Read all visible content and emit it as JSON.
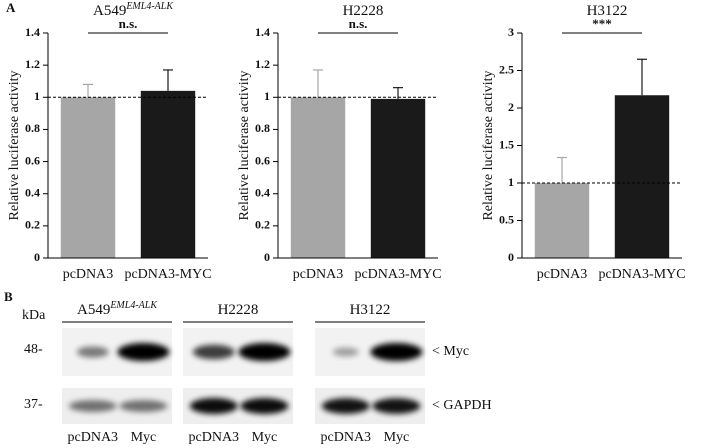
{
  "panel_a_label": "A",
  "chart_data": [
    {
      "type": "bar",
      "title": "A549",
      "title_superscript": "EML4-ALK",
      "y_label": "Relative luciferase activity",
      "categories": [
        "pcDNA3",
        "pcDNA3-MYC"
      ],
      "values": [
        1.0,
        1.04
      ],
      "errors": [
        0.08,
        0.13
      ],
      "colors": [
        "#a6a6a6",
        "#1a1a1a"
      ],
      "ylim": [
        0,
        1.4
      ],
      "yticks": [
        0,
        0.2,
        0.4,
        0.6,
        0.8,
        1,
        1.2,
        1.4
      ],
      "reference_line": 1,
      "annotation": "n.s."
    },
    {
      "type": "bar",
      "title": "H2228",
      "y_label": "Relative luciferase activity",
      "categories": [
        "pcDNA3",
        "pcDNA3-MYC"
      ],
      "values": [
        1.0,
        0.99
      ],
      "errors": [
        0.17,
        0.07
      ],
      "colors": [
        "#a6a6a6",
        "#1a1a1a"
      ],
      "ylim": [
        0,
        1.4
      ],
      "yticks": [
        0,
        0.2,
        0.4,
        0.6,
        0.8,
        1,
        1.2,
        1.4
      ],
      "reference_line": 1,
      "annotation": "n.s."
    },
    {
      "type": "bar",
      "title": "H3122",
      "y_label": "Relative luciferase activity",
      "categories": [
        "pcDNA3",
        "pcDNA3-MYC"
      ],
      "values": [
        1.0,
        2.17
      ],
      "errors": [
        0.34,
        0.48
      ],
      "colors": [
        "#a6a6a6",
        "#1a1a1a"
      ],
      "ylim": [
        0,
        3
      ],
      "yticks": [
        0,
        0.5,
        1,
        1.5,
        2,
        2.5,
        3
      ],
      "reference_line": 1,
      "annotation": "***"
    }
  ],
  "blot": {
    "label": "B",
    "unit": "kDa",
    "markers": [
      "48-",
      "37-"
    ],
    "panels": [
      {
        "title": "A549",
        "title_superscript": "EML4-ALK",
        "lanes": [
          "pcDNA3",
          "Myc"
        ]
      },
      {
        "title": "H2228",
        "lanes": [
          "pcDNA3",
          "Myc"
        ]
      },
      {
        "title": "H3122",
        "lanes": [
          "pcDNA3",
          "Myc"
        ]
      }
    ],
    "targets": [
      "< Myc",
      "< GAPDH"
    ]
  }
}
